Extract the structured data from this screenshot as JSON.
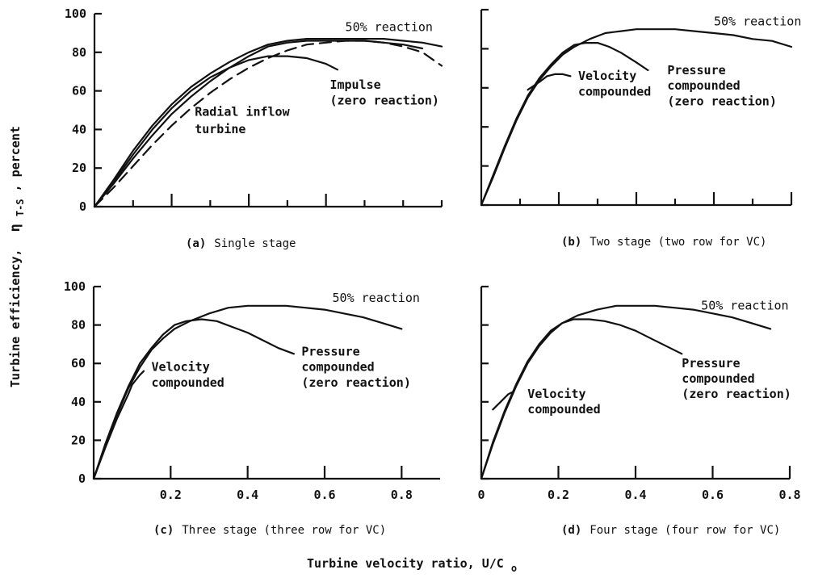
{
  "figure": {
    "ylabel": "Turbine efficiency,",
    "ylabel_symbol": "η",
    "ylabel_sub": "T-S",
    "ylabel_suffix": ", percent",
    "xlabel": "Turbine velocity ratio, U/C",
    "xlabel_sub": "o"
  },
  "chart_data": [
    {
      "type": "line",
      "caption_key": "(a)",
      "caption_text": "Single stage",
      "xlim": [
        0,
        0.9
      ],
      "ylim": [
        0,
        100
      ],
      "y_ticks": [
        0,
        20,
        40,
        60,
        80,
        100
      ],
      "y_tick_labels": [
        "0",
        "20",
        "40",
        "60",
        "80",
        "100"
      ],
      "x_ticks": [
        0.2,
        0.4,
        0.6
      ],
      "x_tick_labels": [],
      "x_minor_ticks": [
        0.1,
        0.3,
        0.5,
        0.7,
        0.8,
        0.9
      ],
      "series": [
        {
          "dashed": false,
          "points": [
            [
              0,
              0
            ],
            [
              0.05,
              14
            ],
            [
              0.1,
              29
            ],
            [
              0.15,
              42
            ],
            [
              0.2,
              53
            ],
            [
              0.25,
              62
            ],
            [
              0.3,
              69
            ],
            [
              0.35,
              75
            ],
            [
              0.4,
              80
            ],
            [
              0.45,
              84
            ],
            [
              0.5,
              86
            ],
            [
              0.55,
              87
            ],
            [
              0.6,
              87
            ],
            [
              0.65,
              87
            ],
            [
              0.7,
              87
            ],
            [
              0.75,
              87
            ],
            [
              0.8,
              86
            ],
            [
              0.85,
              85
            ],
            [
              0.9,
              83
            ]
          ]
        },
        {
          "dashed": false,
          "points": [
            [
              0,
              0
            ],
            [
              0.05,
              13
            ],
            [
              0.1,
              27
            ],
            [
              0.15,
              40
            ],
            [
              0.2,
              51
            ],
            [
              0.25,
              60
            ],
            [
              0.3,
              67
            ],
            [
              0.35,
              72
            ],
            [
              0.4,
              76
            ],
            [
              0.45,
              78
            ],
            [
              0.5,
              78
            ],
            [
              0.55,
              77
            ],
            [
              0.6,
              74
            ],
            [
              0.63,
              71
            ]
          ]
        },
        {
          "dashed": false,
          "points": [
            [
              0,
              0
            ],
            [
              0.05,
              12
            ],
            [
              0.1,
              25
            ],
            [
              0.15,
              37
            ],
            [
              0.2,
              48
            ],
            [
              0.25,
              57
            ],
            [
              0.3,
              65
            ],
            [
              0.35,
              72
            ],
            [
              0.4,
              78
            ],
            [
              0.45,
              83
            ],
            [
              0.5,
              85
            ],
            [
              0.55,
              86
            ],
            [
              0.6,
              86
            ],
            [
              0.65,
              86
            ],
            [
              0.7,
              86
            ],
            [
              0.75,
              85
            ],
            [
              0.8,
              84
            ],
            [
              0.85,
              82
            ]
          ]
        },
        {
          "dashed": true,
          "points": [
            [
              0,
              0
            ],
            [
              0.05,
              10
            ],
            [
              0.1,
              21
            ],
            [
              0.15,
              32
            ],
            [
              0.2,
              42
            ],
            [
              0.25,
              51
            ],
            [
              0.3,
              59
            ],
            [
              0.35,
              66
            ],
            [
              0.4,
              72
            ],
            [
              0.45,
              77
            ],
            [
              0.5,
              81
            ],
            [
              0.55,
              84
            ],
            [
              0.6,
              85
            ],
            [
              0.65,
              86
            ],
            [
              0.7,
              86
            ],
            [
              0.75,
              85
            ],
            [
              0.8,
              83
            ],
            [
              0.85,
              80
            ],
            [
              0.9,
              73
            ]
          ]
        }
      ],
      "annotations": [
        {
          "text": "50% reaction",
          "bold": false,
          "x": 0.65,
          "y": 91
        },
        {
          "text": "Impulse",
          "bold": true,
          "x": 0.61,
          "y": 61
        },
        {
          "text": "(zero reaction)",
          "bold": true,
          "x": 0.61,
          "y": 53
        },
        {
          "text": "Radial inflow",
          "bold": true,
          "x": 0.26,
          "y": 47
        },
        {
          "text": "turbine",
          "bold": true,
          "x": 0.26,
          "y": 38
        }
      ]
    },
    {
      "type": "line",
      "caption_key": "(b)",
      "caption_text": "Two stage (two row for VC)",
      "xlim": [
        0,
        0.8
      ],
      "ylim": [
        0,
        100
      ],
      "y_ticks": [],
      "y_tick_labels": [],
      "y_minor_ticks": [
        0,
        20,
        40,
        60,
        80,
        100
      ],
      "x_ticks": [
        0.2,
        0.4,
        0.6,
        0.8
      ],
      "x_tick_labels": [],
      "x_minor_ticks": [
        0.1,
        0.3,
        0.5,
        0.7
      ],
      "series": [
        {
          "dashed": false,
          "points": [
            [
              0,
              0
            ],
            [
              0.03,
              14
            ],
            [
              0.06,
              29
            ],
            [
              0.09,
              43
            ],
            [
              0.12,
              55
            ],
            [
              0.15,
              64
            ],
            [
              0.18,
              71
            ],
            [
              0.21,
              77
            ],
            [
              0.24,
              81
            ],
            [
              0.28,
              85
            ],
            [
              0.32,
              88
            ],
            [
              0.36,
              89
            ],
            [
              0.4,
              90
            ],
            [
              0.45,
              90
            ],
            [
              0.5,
              90
            ],
            [
              0.55,
              89
            ],
            [
              0.6,
              88
            ],
            [
              0.65,
              87
            ],
            [
              0.7,
              85
            ],
            [
              0.75,
              84
            ],
            [
              0.8,
              81
            ]
          ]
        },
        {
          "dashed": false,
          "points": [
            [
              0,
              0
            ],
            [
              0.03,
              15
            ],
            [
              0.06,
              30
            ],
            [
              0.09,
              44
            ],
            [
              0.12,
              56
            ],
            [
              0.15,
              65
            ],
            [
              0.18,
              72
            ],
            [
              0.21,
              78
            ],
            [
              0.24,
              82
            ],
            [
              0.27,
              83
            ],
            [
              0.3,
              83
            ],
            [
              0.33,
              81
            ],
            [
              0.36,
              78
            ],
            [
              0.4,
              73
            ],
            [
              0.43,
              69
            ]
          ]
        },
        {
          "dashed": false,
          "points": [
            [
              0.12,
              59
            ],
            [
              0.15,
              63
            ],
            [
              0.17,
              66
            ],
            [
              0.19,
              67
            ],
            [
              0.21,
              67
            ],
            [
              0.23,
              66
            ]
          ]
        }
      ],
      "annotations": [
        {
          "text": "50% reaction",
          "bold": false,
          "x": 0.6,
          "y": 92
        },
        {
          "text": "Velocity",
          "bold": true,
          "x": 0.25,
          "y": 64
        },
        {
          "text": "compounded",
          "bold": true,
          "x": 0.25,
          "y": 56
        },
        {
          "text": "Pressure",
          "bold": true,
          "x": 0.48,
          "y": 67
        },
        {
          "text": "compounded",
          "bold": true,
          "x": 0.48,
          "y": 59
        },
        {
          "text": "(zero reaction)",
          "bold": true,
          "x": 0.48,
          "y": 51
        }
      ]
    },
    {
      "type": "line",
      "caption_key": "(c)",
      "caption_text": "Three stage (three row for VC)",
      "xlim": [
        0,
        0.9
      ],
      "ylim": [
        0,
        100
      ],
      "y_ticks": [
        0,
        20,
        40,
        60,
        80,
        100
      ],
      "y_tick_labels": [
        "0",
        "20",
        "40",
        "60",
        "80",
        "100"
      ],
      "x_ticks": [
        0.2,
        0.4,
        0.6,
        0.8
      ],
      "x_tick_labels": [
        "0.2",
        "0.4",
        "0.6",
        "0.8"
      ],
      "x_minor_ticks": [],
      "series": [
        {
          "dashed": false,
          "points": [
            [
              0,
              0
            ],
            [
              0.03,
              17
            ],
            [
              0.06,
              33
            ],
            [
              0.09,
              47
            ],
            [
              0.12,
              58
            ],
            [
              0.15,
              67
            ],
            [
              0.18,
              73
            ],
            [
              0.21,
              78
            ],
            [
              0.25,
              82
            ],
            [
              0.3,
              86
            ],
            [
              0.35,
              89
            ],
            [
              0.4,
              90
            ],
            [
              0.45,
              90
            ],
            [
              0.5,
              90
            ],
            [
              0.55,
              89
            ],
            [
              0.6,
              88
            ],
            [
              0.65,
              86
            ],
            [
              0.7,
              84
            ],
            [
              0.75,
              81
            ],
            [
              0.8,
              78
            ]
          ]
        },
        {
          "dashed": false,
          "points": [
            [
              0,
              0
            ],
            [
              0.03,
              18
            ],
            [
              0.06,
              34
            ],
            [
              0.09,
              48
            ],
            [
              0.12,
              60
            ],
            [
              0.15,
              68
            ],
            [
              0.18,
              75
            ],
            [
              0.21,
              80
            ],
            [
              0.24,
              82
            ],
            [
              0.28,
              83
            ],
            [
              0.32,
              82
            ],
            [
              0.36,
              79
            ],
            [
              0.4,
              76
            ],
            [
              0.44,
              72
            ],
            [
              0.48,
              68
            ],
            [
              0.52,
              65
            ]
          ]
        },
        {
          "dashed": false,
          "points": [
            [
              0,
              0
            ],
            [
              0.03,
              16
            ],
            [
              0.06,
              31
            ],
            [
              0.09,
              44
            ],
            [
              0.1,
              49
            ],
            [
              0.12,
              54
            ],
            [
              0.13,
              56
            ]
          ]
        }
      ],
      "annotations": [
        {
          "text": "50% reaction",
          "bold": false,
          "x": 0.62,
          "y": 92
        },
        {
          "text": "Velocity",
          "bold": true,
          "x": 0.15,
          "y": 56
        },
        {
          "text": "compounded",
          "bold": true,
          "x": 0.15,
          "y": 48
        },
        {
          "text": "Pressure",
          "bold": true,
          "x": 0.54,
          "y": 64
        },
        {
          "text": "compounded",
          "bold": true,
          "x": 0.54,
          "y": 56
        },
        {
          "text": "(zero reaction)",
          "bold": true,
          "x": 0.54,
          "y": 48
        }
      ]
    },
    {
      "type": "line",
      "caption_key": "(d)",
      "caption_text": "Four stage (four row for VC)",
      "xlim": [
        0,
        0.8
      ],
      "ylim": [
        0,
        100
      ],
      "y_ticks": [],
      "y_tick_labels": [],
      "y_minor_ticks": [
        0,
        20,
        40,
        60,
        80,
        100
      ],
      "x_ticks": [
        0,
        0.2,
        0.4,
        0.6,
        0.8
      ],
      "x_tick_labels": [
        "0",
        "0.2",
        "0.4",
        "0.6",
        "0.8"
      ],
      "x_minor_ticks": [],
      "series": [
        {
          "dashed": false,
          "points": [
            [
              0,
              0
            ],
            [
              0.03,
              18
            ],
            [
              0.06,
              34
            ],
            [
              0.09,
              48
            ],
            [
              0.12,
              60
            ],
            [
              0.15,
              69
            ],
            [
              0.18,
              76
            ],
            [
              0.21,
              81
            ],
            [
              0.25,
              85
            ],
            [
              0.3,
              88
            ],
            [
              0.35,
              90
            ],
            [
              0.4,
              90
            ],
            [
              0.45,
              90
            ],
            [
              0.5,
              89
            ],
            [
              0.55,
              88
            ],
            [
              0.6,
              86
            ],
            [
              0.65,
              84
            ],
            [
              0.7,
              81
            ],
            [
              0.75,
              78
            ]
          ]
        },
        {
          "dashed": false,
          "points": [
            [
              0,
              0
            ],
            [
              0.03,
              19
            ],
            [
              0.06,
              35
            ],
            [
              0.09,
              49
            ],
            [
              0.12,
              61
            ],
            [
              0.15,
              70
            ],
            [
              0.18,
              77
            ],
            [
              0.21,
              81
            ],
            [
              0.24,
              83
            ],
            [
              0.28,
              83
            ],
            [
              0.32,
              82
            ],
            [
              0.36,
              80
            ],
            [
              0.4,
              77
            ],
            [
              0.44,
              73
            ],
            [
              0.48,
              69
            ],
            [
              0.52,
              65
            ]
          ]
        },
        {
          "dashed": false,
          "points": [
            [
              0.03,
              36
            ],
            [
              0.05,
              40
            ],
            [
              0.07,
              44
            ],
            [
              0.08,
              45
            ]
          ]
        }
      ],
      "annotations": [
        {
          "text": "50% reaction",
          "bold": false,
          "x": 0.57,
          "y": 88
        },
        {
          "text": "Velocity",
          "bold": true,
          "x": 0.12,
          "y": 42
        },
        {
          "text": "compounded",
          "bold": true,
          "x": 0.12,
          "y": 34
        },
        {
          "text": "Pressure",
          "bold": true,
          "x": 0.52,
          "y": 58
        },
        {
          "text": "compounded",
          "bold": true,
          "x": 0.52,
          "y": 50
        },
        {
          "text": "(zero reaction)",
          "bold": true,
          "x": 0.52,
          "y": 42
        }
      ]
    }
  ]
}
